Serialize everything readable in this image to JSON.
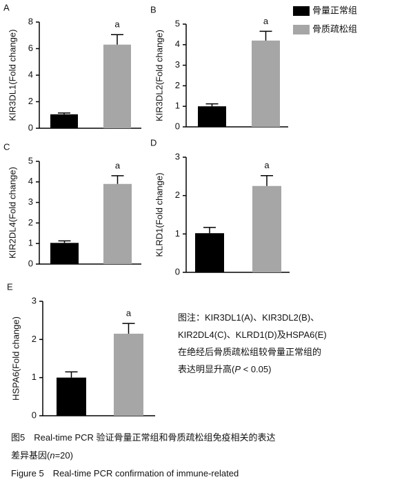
{
  "chart_data": [
    {
      "type": "bar",
      "panel": "A",
      "ylabel": "KIR3DL1(Fold change)",
      "values": [
        1.05,
        6.3
      ],
      "errors": [
        0.1,
        0.75
      ],
      "annotation": "a",
      "ylim": [
        0,
        8
      ],
      "yticks": [
        0,
        2,
        4,
        6,
        8
      ]
    },
    {
      "type": "bar",
      "panel": "B",
      "ylabel": "KIR3DL2(Fold change)",
      "values": [
        1.0,
        4.2
      ],
      "errors": [
        0.12,
        0.45
      ],
      "annotation": "a",
      "ylim": [
        0,
        5
      ],
      "yticks": [
        0,
        1,
        2,
        3,
        4,
        5
      ]
    },
    {
      "type": "bar",
      "panel": "C",
      "ylabel": "KIR2DL4(Fold change)",
      "values": [
        1.03,
        3.9
      ],
      "errors": [
        0.1,
        0.4
      ],
      "annotation": "a",
      "ylim": [
        0,
        5
      ],
      "yticks": [
        0,
        1,
        2,
        3,
        4,
        5
      ]
    },
    {
      "type": "bar",
      "panel": "D",
      "ylabel": "KLRD1(Fold change)",
      "values": [
        1.02,
        2.25
      ],
      "errors": [
        0.15,
        0.27
      ],
      "annotation": "a",
      "ylim": [
        0,
        3
      ],
      "yticks": [
        0,
        1,
        2,
        3
      ]
    },
    {
      "type": "bar",
      "panel": "E",
      "ylabel": "HSPA6(Fold change)",
      "values": [
        1.0,
        2.15
      ],
      "errors": [
        0.15,
        0.27
      ],
      "annotation": "a",
      "ylim": [
        0,
        3
      ],
      "yticks": [
        0,
        1,
        2,
        3
      ]
    }
  ],
  "legend": [
    {
      "name": "骨量正常组",
      "color": "#000000"
    },
    {
      "name": "骨质疏松组",
      "color": "#a6a6a6"
    }
  ],
  "note": [
    [
      "图注：KIR3DL1(A)、KIR3DL2(B)、"
    ],
    [
      "KIR2DL4(C)、KLRD1(D)及HSPA6(E)"
    ],
    [
      "在绝经后骨质疏松组较骨量正常组的"
    ],
    [
      "表达明显升高(",
      "P",
      " < 0.05)"
    ]
  ],
  "caption": [
    [
      "图5　Real-time PCR 验证骨量正常组和骨质疏松组免疫相关的表达"
    ],
    [
      "差异基因(",
      "n",
      "=20)"
    ],
    [
      "Figure 5　Real-time PCR confirmation of immune-related"
    ]
  ]
}
